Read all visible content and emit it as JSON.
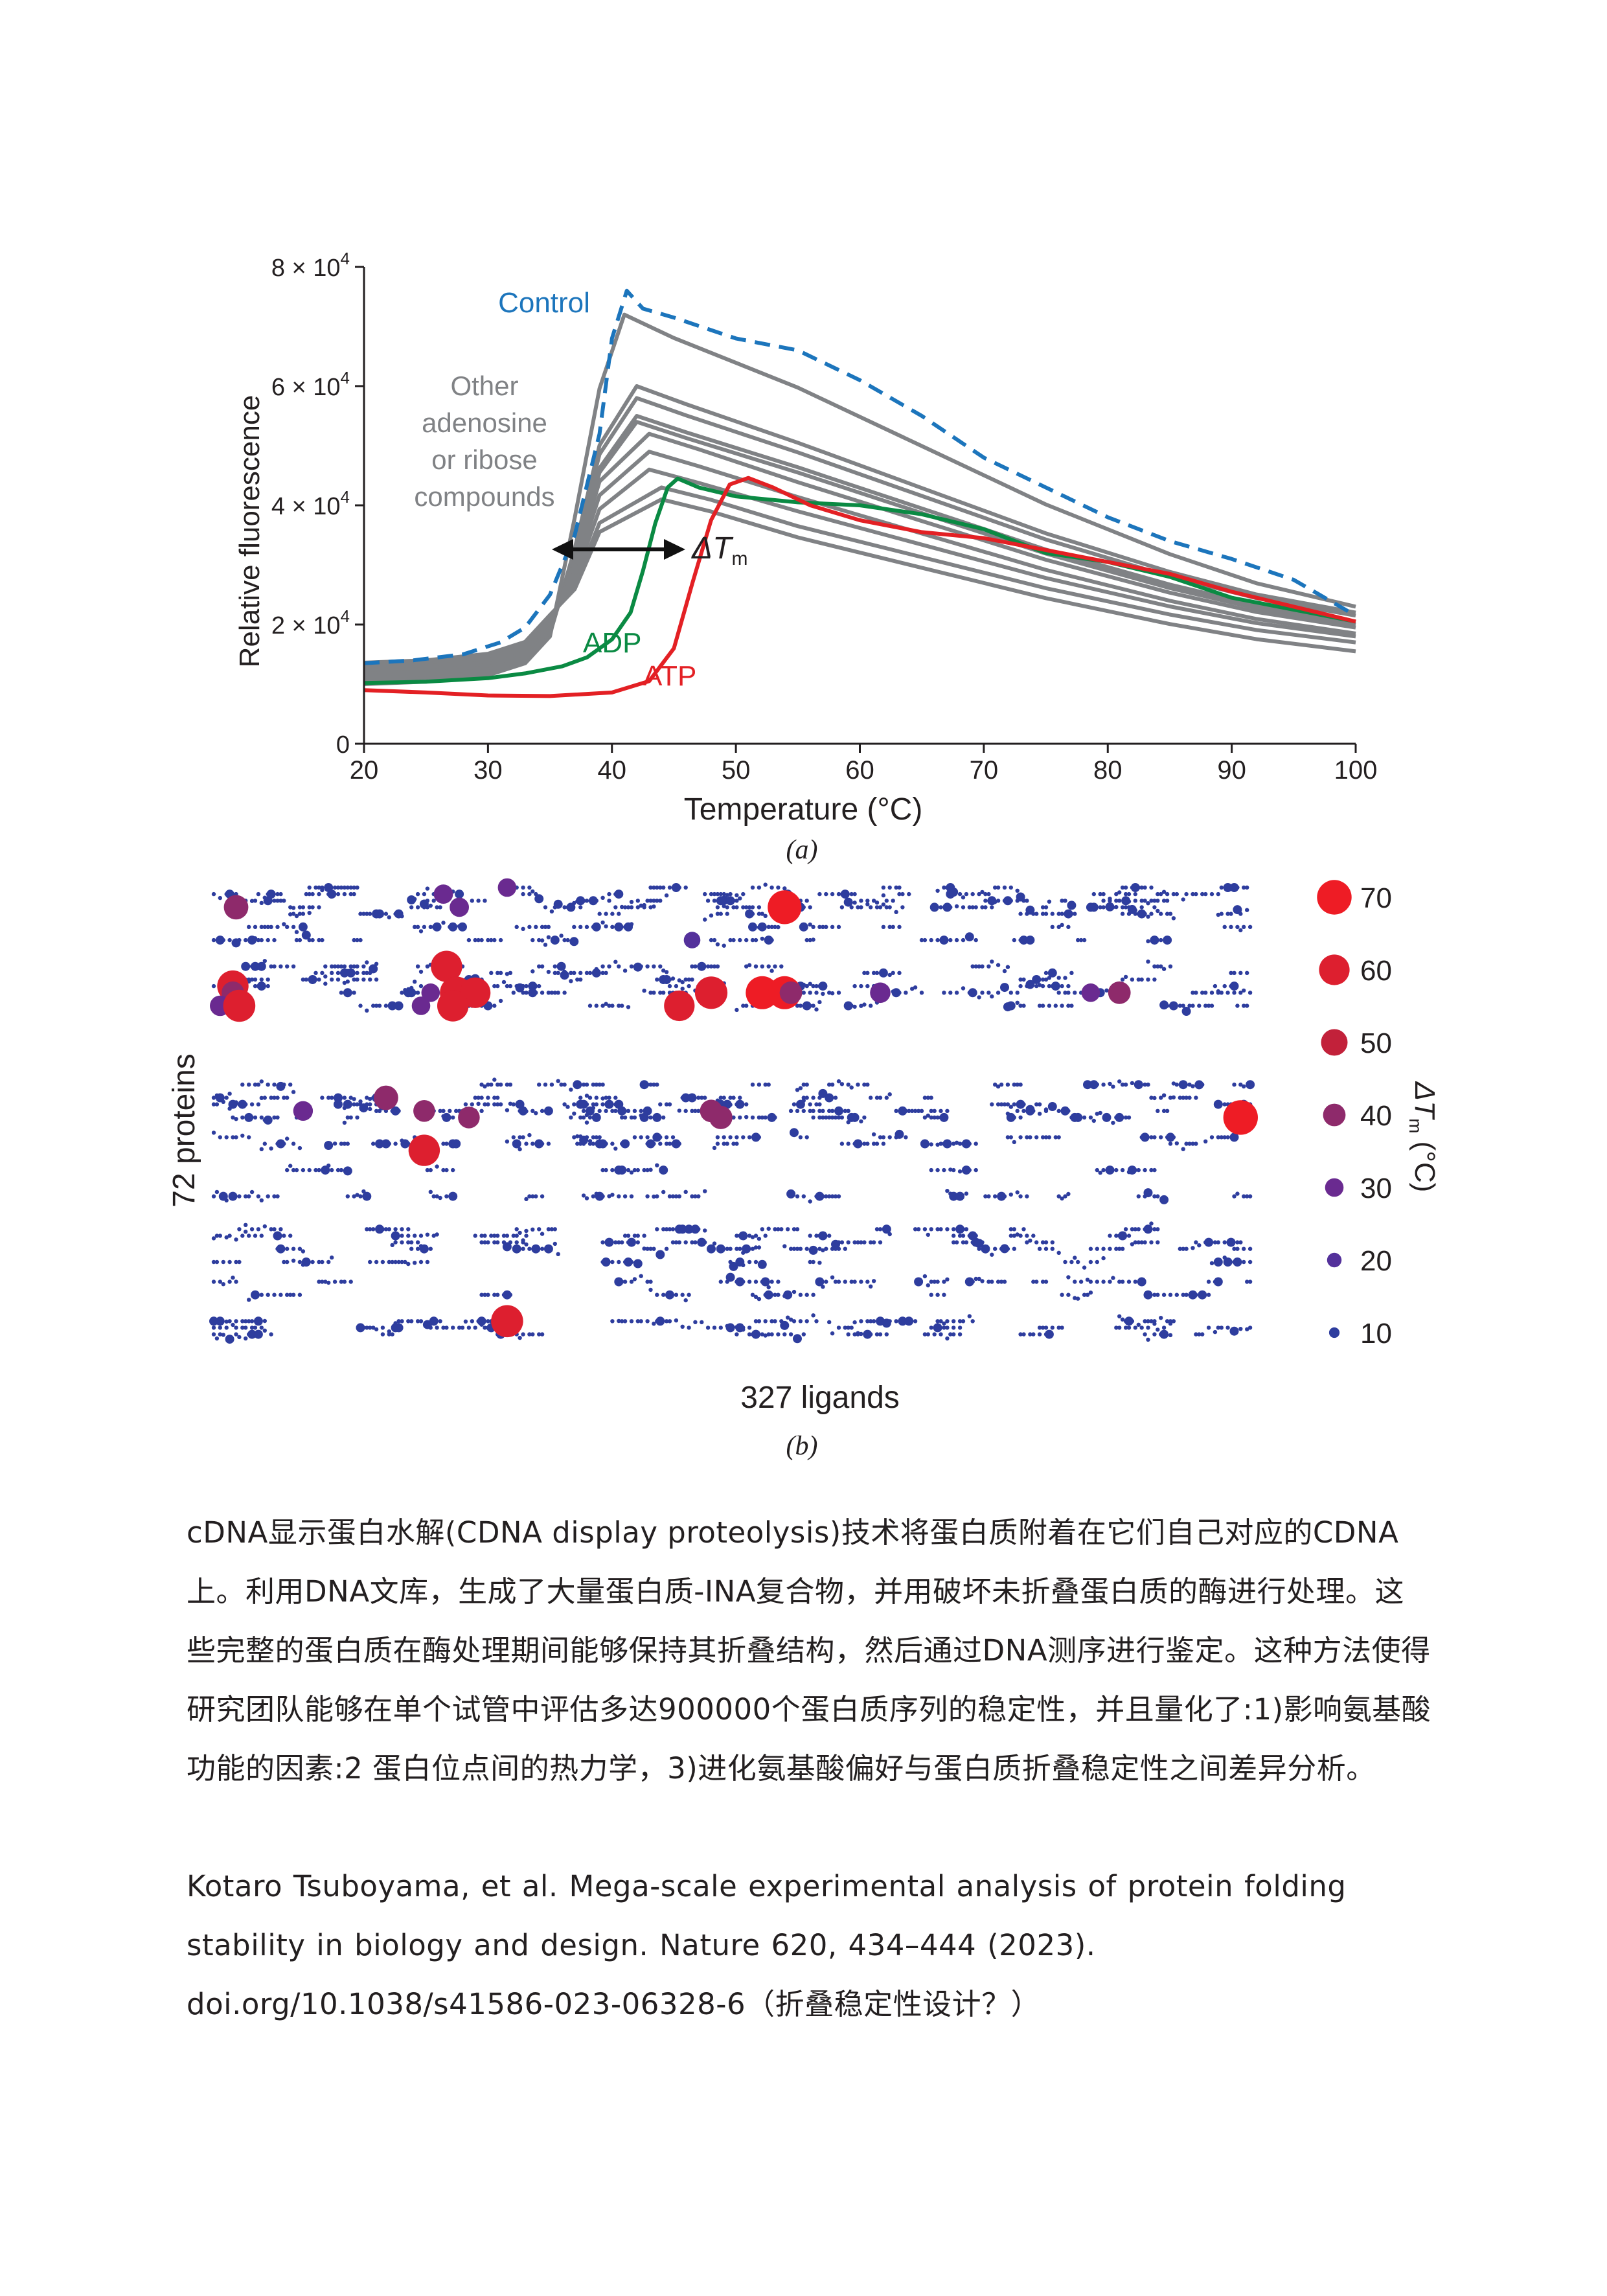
{
  "chart_data": [
    {
      "type": "line",
      "xlabel": "Temperature (°C)",
      "ylabel": "Relative fluorescence",
      "xlim": [
        20,
        100
      ],
      "ylim": [
        0,
        80000
      ],
      "x_ticks": [
        "20",
        "30",
        "40",
        "50",
        "60",
        "70",
        "80",
        "90",
        "100"
      ],
      "y_ticks": [
        {
          "mant": "0",
          "exp": ""
        },
        {
          "mant": "2 × 10",
          "exp": "4"
        },
        {
          "mant": "4 × 10",
          "exp": "4"
        },
        {
          "mant": "6 × 10",
          "exp": "4"
        },
        {
          "mant": "8 × 10",
          "exp": "4"
        }
      ],
      "caption": "(a)",
      "annotations": {
        "control": "Control",
        "other": [
          "Other",
          "adenosine",
          "or ribose",
          "compounds"
        ],
        "adp": "ADP",
        "atp": "ATP",
        "dtm": "ΔT",
        "dtm_sub": "m"
      },
      "series": [
        {
          "name": "Control",
          "color": "#1c75bc",
          "dashed": true,
          "points": [
            [
              20,
              13500
            ],
            [
              24,
              14000
            ],
            [
              28,
              15000
            ],
            [
              31,
              17000
            ],
            [
              33,
              19500
            ],
            [
              35,
              25000
            ],
            [
              37,
              35000
            ],
            [
              39,
              52000
            ],
            [
              40,
              68000
            ],
            [
              41.2,
              76000
            ],
            [
              42.5,
              73000
            ],
            [
              45,
              71500
            ],
            [
              50,
              68000
            ],
            [
              55,
              66000
            ],
            [
              60,
              61000
            ],
            [
              65,
              55000
            ],
            [
              70,
              48000
            ],
            [
              75,
              43000
            ],
            [
              80,
              38000
            ],
            [
              85,
              34000
            ],
            [
              90,
              31000
            ],
            [
              95,
              27500
            ],
            [
              100,
              21500
            ]
          ]
        },
        {
          "name": "ADP",
          "color": "#0a8a43",
          "dashed": false,
          "points": [
            [
              20,
              10200
            ],
            [
              25,
              10400
            ],
            [
              30,
              11000
            ],
            [
              33,
              11800
            ],
            [
              36,
              13000
            ],
            [
              38,
              14500
            ],
            [
              40,
              17500
            ],
            [
              41.5,
              22000
            ],
            [
              42.5,
              29000
            ],
            [
              43.5,
              37000
            ],
            [
              44.5,
              43000
            ],
            [
              45.3,
              44500
            ],
            [
              47,
              43000
            ],
            [
              50,
              41500
            ],
            [
              55,
              40500
            ],
            [
              60,
              40000
            ],
            [
              65,
              38500
            ],
            [
              70,
              36000
            ],
            [
              75,
              32000
            ],
            [
              80,
              30500
            ],
            [
              85,
              28000
            ],
            [
              90,
              24500
            ],
            [
              95,
              22500
            ],
            [
              100,
              20500
            ]
          ]
        },
        {
          "name": "ATP",
          "color": "#e32024",
          "dashed": false,
          "points": [
            [
              20,
              9000
            ],
            [
              25,
              8600
            ],
            [
              30,
              8100
            ],
            [
              35,
              8000
            ],
            [
              40,
              8600
            ],
            [
              43,
              10500
            ],
            [
              45,
              16000
            ],
            [
              46.5,
              27000
            ],
            [
              48,
              37500
            ],
            [
              49.5,
              43500
            ],
            [
              51,
              44600
            ],
            [
              53,
              43000
            ],
            [
              56,
              40000
            ],
            [
              60,
              37500
            ],
            [
              65,
              35500
            ],
            [
              70,
              34500
            ],
            [
              75,
              32500
            ],
            [
              80,
              30500
            ],
            [
              85,
              28500
            ],
            [
              90,
              25500
            ],
            [
              95,
              23000
            ],
            [
              100,
              20500
            ]
          ]
        }
      ],
      "other_series": [
        {
          "peak_x": 41,
          "peak_y": 72000,
          "end_y": 23000
        },
        {
          "peak_x": 42,
          "peak_y": 60000,
          "end_y": 22000
        },
        {
          "peak_x": 42,
          "peak_y": 58000,
          "end_y": 21500
        },
        {
          "peak_x": 42,
          "peak_y": 55000,
          "end_y": 20500
        },
        {
          "peak_x": 42,
          "peak_y": 54000,
          "end_y": 20000
        },
        {
          "peak_x": 43,
          "peak_y": 52000,
          "end_y": 19500
        },
        {
          "peak_x": 43,
          "peak_y": 49000,
          "end_y": 18500
        },
        {
          "peak_x": 43,
          "peak_y": 46000,
          "end_y": 18000
        },
        {
          "peak_x": 44,
          "peak_y": 43000,
          "end_y": 17000
        },
        {
          "peak_x": 44,
          "peak_y": 41000,
          "end_y": 15500
        }
      ]
    },
    {
      "type": "scatter",
      "xlabel": "327 ligands",
      "ylabel": "72 proteins",
      "xlim": [
        1,
        327
      ],
      "ylim": [
        1,
        72
      ],
      "caption": "(b)",
      "colorbar_label": "ΔT",
      "colorbar_sub": "m",
      "colorbar_unit": " (°C)",
      "legend": [
        {
          "value": "70",
          "color": "#ee1c25"
        },
        {
          "value": "60",
          "color": "#dd1f2f"
        },
        {
          "value": "50",
          "color": "#c2213a"
        },
        {
          "value": "40",
          "color": "#8e2a6b"
        },
        {
          "value": "30",
          "color": "#6a2a90"
        },
        {
          "value": "20",
          "color": "#54319b"
        },
        {
          "value": "10",
          "color": "#2e3d9e"
        }
      ],
      "bubbles": [
        {
          "x": 8,
          "y": 69,
          "dtm": 45
        },
        {
          "x": 73,
          "y": 71,
          "dtm": 32
        },
        {
          "x": 93,
          "y": 72,
          "dtm": 30
        },
        {
          "x": 78,
          "y": 69,
          "dtm": 32
        },
        {
          "x": 180,
          "y": 69,
          "dtm": 68
        },
        {
          "x": 151,
          "y": 64,
          "dtm": 25
        },
        {
          "x": 74,
          "y": 60,
          "dtm": 62
        },
        {
          "x": 7,
          "y": 57,
          "dtm": 62
        },
        {
          "x": 7,
          "y": 56,
          "dtm": 40
        },
        {
          "x": 3,
          "y": 54,
          "dtm": 35
        },
        {
          "x": 9,
          "y": 54,
          "dtm": 64
        },
        {
          "x": 69,
          "y": 56,
          "dtm": 30
        },
        {
          "x": 77,
          "y": 56,
          "dtm": 65
        },
        {
          "x": 83,
          "y": 56,
          "dtm": 60
        },
        {
          "x": 76,
          "y": 54,
          "dtm": 62
        },
        {
          "x": 66,
          "y": 54,
          "dtm": 30
        },
        {
          "x": 147,
          "y": 54,
          "dtm": 60
        },
        {
          "x": 157,
          "y": 56,
          "dtm": 65
        },
        {
          "x": 173,
          "y": 56,
          "dtm": 66
        },
        {
          "x": 180,
          "y": 56,
          "dtm": 66
        },
        {
          "x": 182,
          "y": 56,
          "dtm": 40
        },
        {
          "x": 210,
          "y": 56,
          "dtm": 35
        },
        {
          "x": 276,
          "y": 56,
          "dtm": 30
        },
        {
          "x": 285,
          "y": 56,
          "dtm": 40
        },
        {
          "x": 55,
          "y": 40,
          "dtm": 45
        },
        {
          "x": 29,
          "y": 38,
          "dtm": 33
        },
        {
          "x": 67,
          "y": 38,
          "dtm": 38
        },
        {
          "x": 81,
          "y": 37,
          "dtm": 38
        },
        {
          "x": 157,
          "y": 38,
          "dtm": 40
        },
        {
          "x": 160,
          "y": 37,
          "dtm": 42
        },
        {
          "x": 323,
          "y": 37,
          "dtm": 70
        },
        {
          "x": 67,
          "y": 32,
          "dtm": 62
        },
        {
          "x": 93,
          "y": 6,
          "dtm": 64
        }
      ],
      "dot_rows": [
        72,
        71,
        70,
        69,
        68,
        66,
        64,
        60,
        59,
        58,
        57,
        56,
        54,
        42,
        40,
        39,
        38,
        37,
        34,
        33,
        29,
        25,
        20,
        19,
        18,
        17,
        15,
        12,
        10,
        6,
        5,
        4
      ]
    }
  ],
  "paragraph1": "cDNA显示蛋白水解(CDNA display proteolysis)技术将蛋白质附着在它们自己对应的CDNA上。利用DNA文库，生成了大量蛋白质-INA复合物，并用破坏未折叠蛋白质的酶进行处理。这些完整的蛋白质在酶处理期间能够保持其折叠结构，然后通过DNA测序进行鉴定。这种方法使得研究团队能够在单个试管中评估多达900000个蛋白质序列的稳定性，并且量化了:1)影响氨基酸功能的因素:2 蛋白位点间的热力学，3)进化氨基酸偏好与蛋白质折叠稳定性之间差异分析。",
  "paragraph2": "Kotaro Tsuboyama, et al. Mega-scale experimental analysis of protein folding stability in biology and design. Nature 620, 434–444 (2023). doi.org/10.1038/s41586-023-06328-6（折叠稳定性设计？）"
}
